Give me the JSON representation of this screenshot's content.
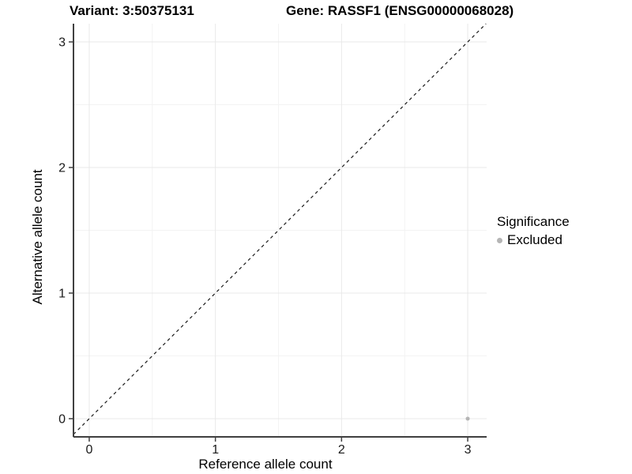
{
  "titles": {
    "variant": "Variant: 3:50375131",
    "gene": "Gene: RASSF1 (ENSG00000068028)"
  },
  "chart_data": {
    "type": "scatter",
    "title": "Variant: 3:50375131   Gene: RASSF1 (ENSG00000068028)",
    "xlabel": "Reference allele count",
    "ylabel": "Alternative allele count",
    "xlim": [
      -0.125,
      3.15
    ],
    "ylim": [
      -0.145,
      3.145
    ],
    "x_ticks": [
      0,
      1,
      2,
      3
    ],
    "y_ticks": [
      0,
      1,
      2,
      3
    ],
    "x_minor_ticks": [
      0.5,
      1.5,
      2.5
    ],
    "y_minor_ticks": [
      0.5,
      1.5,
      2.5
    ],
    "grid": true,
    "identity_line": {
      "slope": 1,
      "intercept": 0,
      "style": "dashed",
      "color": "#1a1a1a"
    },
    "series": [
      {
        "name": "Excluded",
        "color": "#b5b5b5",
        "points": [
          {
            "x": 3,
            "y": 0
          }
        ]
      }
    ],
    "legend": {
      "title": "Significance",
      "position": "right",
      "items": [
        {
          "label": "Excluded",
          "color": "#b5b5b5"
        }
      ]
    }
  },
  "colors": {
    "background": "#ffffff",
    "axis_line": "#404040",
    "tick_label": "#1a1a1a",
    "grid_major": "#e8e8e8",
    "grid_minor": "#f3f3f3"
  }
}
